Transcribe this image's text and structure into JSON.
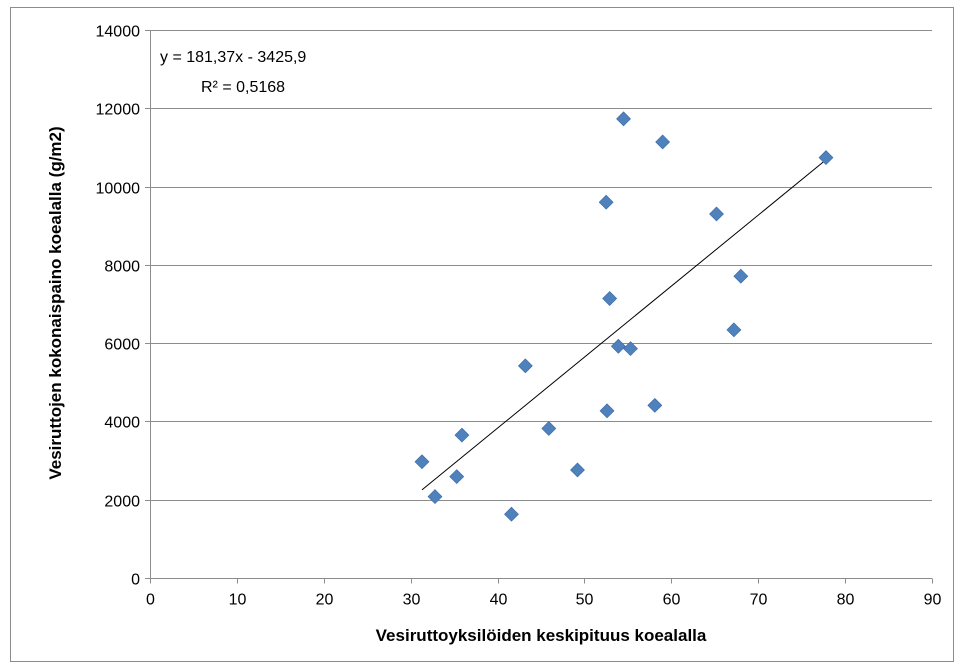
{
  "chart_data": {
    "type": "scatter",
    "title": "",
    "xlabel": "Vesiruttoyksilöiden keskipituus koealalla",
    "ylabel": "Vesiruttojen kokonaispaino  koealalla (g/m2)",
    "xlim": [
      0,
      90
    ],
    "ylim": [
      0,
      14000
    ],
    "x_ticks": [
      0,
      10,
      20,
      30,
      40,
      50,
      60,
      70,
      80,
      90
    ],
    "y_ticks": [
      0,
      2000,
      4000,
      6000,
      8000,
      10000,
      12000,
      14000
    ],
    "x_tick_labels": [
      "0",
      "10",
      "20",
      "30",
      "40",
      "50",
      "60",
      "70",
      "80",
      "90"
    ],
    "y_tick_labels": [
      "0",
      "2000",
      "4000",
      "6000",
      "8000",
      "10000",
      "12000",
      "14000"
    ],
    "grid": "horizontal",
    "legend": "none",
    "marker": "diamond",
    "series": [
      {
        "color": "#4F81BD",
        "points": [
          {
            "x": 31.3,
            "y": 2970
          },
          {
            "x": 32.8,
            "y": 2080
          },
          {
            "x": 35.3,
            "y": 2590
          },
          {
            "x": 35.9,
            "y": 3650
          },
          {
            "x": 41.6,
            "y": 1630
          },
          {
            "x": 43.2,
            "y": 5420
          },
          {
            "x": 45.9,
            "y": 3820
          },
          {
            "x": 49.2,
            "y": 2760
          },
          {
            "x": 52.5,
            "y": 9600
          },
          {
            "x": 52.6,
            "y": 4270
          },
          {
            "x": 52.9,
            "y": 7140
          },
          {
            "x": 53.9,
            "y": 5920
          },
          {
            "x": 54.5,
            "y": 11730
          },
          {
            "x": 55.3,
            "y": 5860
          },
          {
            "x": 58.1,
            "y": 4410
          },
          {
            "x": 59.0,
            "y": 11140
          },
          {
            "x": 65.2,
            "y": 9300
          },
          {
            "x": 67.2,
            "y": 6340
          },
          {
            "x": 68.0,
            "y": 7710
          },
          {
            "x": 77.8,
            "y": 10740
          }
        ]
      }
    ],
    "trendline": {
      "type": "linear",
      "slope": 181.37,
      "intercept": -3425.9,
      "x_start": 31.3,
      "x_end": 77.8,
      "color": "#000000"
    },
    "annotations": {
      "equation": "y = 181,37x - 3425,9",
      "r_squared": "R² = 0,5168"
    }
  }
}
